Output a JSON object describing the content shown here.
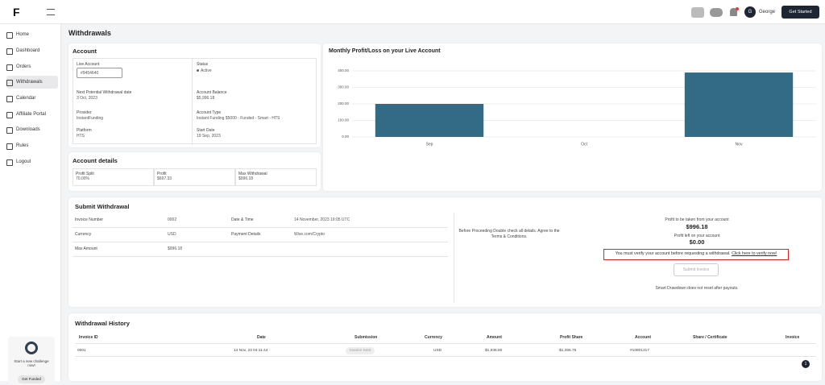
{
  "header": {
    "user_initial": "G",
    "user_name": "George",
    "cta": "Get Started"
  },
  "sidebar": {
    "items": [
      "Home",
      "Dashboard",
      "Orders",
      "Withdrawals",
      "Calendar",
      "Affiliate Portal",
      "Downloads",
      "Rules",
      "Logout"
    ],
    "promo_text": "Start a new challenge now!",
    "promo_button": "Get Funded"
  },
  "page_title": "Withdrawals",
  "account": {
    "title": "Account",
    "fields": [
      {
        "label": "Live Account",
        "value": "#9454640"
      },
      {
        "label": "Status",
        "value": "Active"
      },
      {
        "label": "Next Potential Withdrawal date",
        "value": "3 Oct, 2023"
      },
      {
        "label": "Account Balance",
        "value": "$5,996.18"
      },
      {
        "label": "Provider",
        "value": "InstantFunding"
      },
      {
        "label": "Account Type",
        "value": "Instant Funding $5000 - Funded - Smart - HTS"
      },
      {
        "label": "Platform",
        "value": "HTS"
      },
      {
        "label": "Start Date",
        "value": "19 Sep, 2023"
      }
    ]
  },
  "account_details": {
    "title": "Account details",
    "fields": [
      {
        "label": "Profit Split",
        "value": "70.00%"
      },
      {
        "label": "Profit",
        "value": "$697.33"
      },
      {
        "label": "Max Withdrawal",
        "value": "$996.18"
      }
    ]
  },
  "chart_data": {
    "type": "bar",
    "title": "Monthly Profit/Loss on your Live Account",
    "categories": [
      "Sep",
      "Oct",
      "Nov"
    ],
    "values": [
      200,
      0,
      390
    ],
    "color": "#336b87",
    "ylim": [
      0,
      400
    ],
    "yticks": [
      {
        "value": 0,
        "label": "0.00"
      },
      {
        "value": 100,
        "label": "100.00"
      },
      {
        "value": 200,
        "label": "200.00"
      },
      {
        "value": 300,
        "label": "300.00"
      },
      {
        "value": 400,
        "label": "400.00"
      }
    ],
    "grid": true
  },
  "submit": {
    "title": "Submit Withdrawal",
    "fields": [
      {
        "label": "Invoice Number",
        "value": "0002"
      },
      {
        "label": "Date & Time",
        "value": "14 November, 2023 19:05 UTC"
      },
      {
        "label": "Currency",
        "value": "USD"
      },
      {
        "label": "Payment Details",
        "value": "Wise.com/Crypto"
      },
      {
        "label": "Max Amount",
        "value": "$996.18"
      }
    ],
    "note": "Before Proceeding Double check all details. Agree to the Terms & Conditions.",
    "profit_taken_label": "Profit to be taken from your account",
    "profit_taken": "$996.18",
    "profit_left_label": "Profit left on your account",
    "profit_left": "$0.00",
    "warning": "You must verify your account before requesting a withdrawal.",
    "warning_link": "Click here to verify now!",
    "button": "Submit Invoice",
    "footnote": "Smart Drawdown does not reset after payouts."
  },
  "history": {
    "title": "Withdrawal History",
    "columns": [
      "Invoice ID",
      "Date",
      "Submission",
      "Currency",
      "Amount",
      "Profit Share",
      "Account",
      "Share / Certificate",
      "Invoice"
    ],
    "rows": [
      [
        "0001",
        "14 Nov, 23 04:11:44",
        "Invoice Sent",
        "USD",
        "$1,936.80",
        "$1,355.76",
        "#10801317",
        "",
        ""
      ]
    ],
    "page": "1"
  }
}
